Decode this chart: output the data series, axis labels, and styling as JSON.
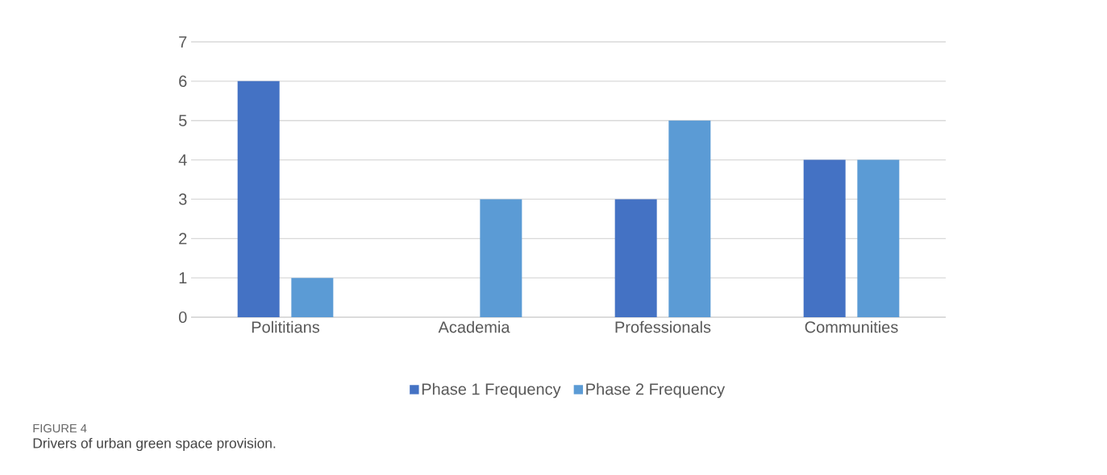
{
  "chart_data": {
    "type": "bar",
    "categories": [
      "Polititians",
      "Academia",
      "Professionals",
      "Communities"
    ],
    "series": [
      {
        "name": "Phase 1 Frequency",
        "color": "#4472c4",
        "values": [
          6,
          0,
          3,
          4
        ]
      },
      {
        "name": "Phase 2 Frequency",
        "color": "#5b9bd5",
        "values": [
          1,
          3,
          5,
          4
        ]
      }
    ],
    "ylim": [
      0,
      7
    ],
    "yticks": [
      0,
      1,
      2,
      3,
      4,
      5,
      6,
      7
    ],
    "grid": "y",
    "legend": "bottom",
    "annotations": [
      "FIGURE 4",
      "Drivers of urban green space provision."
    ]
  }
}
